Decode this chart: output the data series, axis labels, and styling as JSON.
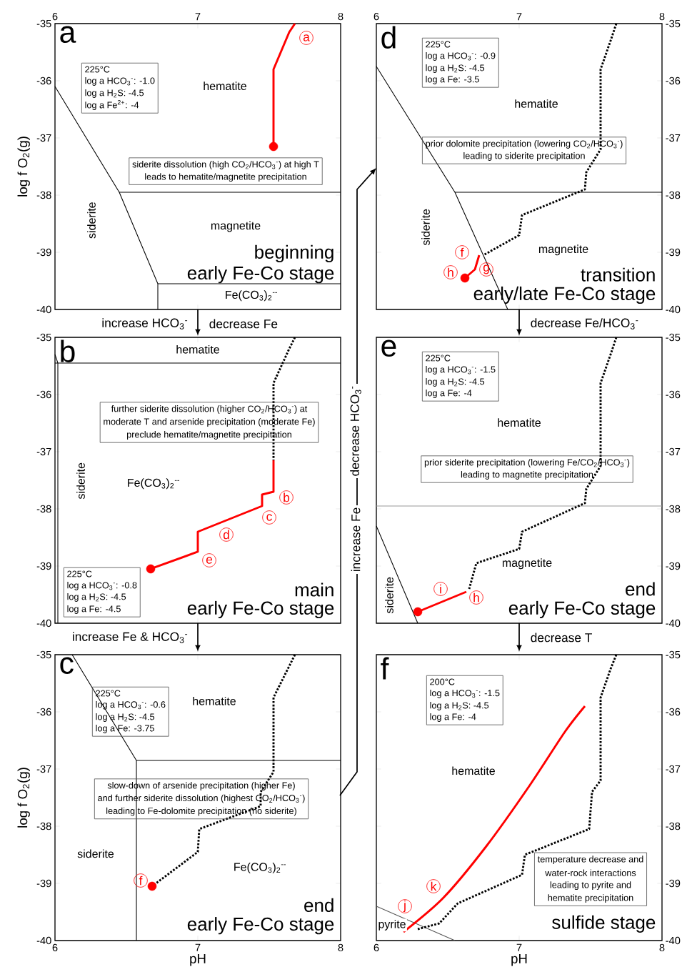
{
  "chart_data": [
    {
      "type": "line",
      "title": "a",
      "ylabel": "log f O$_{2}$(g)",
      "xlim": [
        6,
        8
      ],
      "ylim": [
        -40,
        -35
      ],
      "xticks": [
        6,
        7,
        8
      ],
      "yticks": [
        -40,
        -39,
        -38,
        -37,
        -36,
        -35
      ],
      "series": [
        {
          "type": "line",
          "color": "#000000",
          "x": [
            6,
            6.45,
            6.72,
            6.72
          ],
          "values": [
            -36.1,
            -37.95,
            -39.55,
            -40
          ]
        },
        {
          "type": "line",
          "color": "#000000",
          "x": [
            6.45,
            8
          ],
          "values": [
            -37.95,
            -37.95
          ]
        },
        {
          "type": "line",
          "color": "#000000",
          "x": [
            6.72,
            8
          ],
          "values": [
            -39.55,
            -39.55
          ]
        },
        {
          "type": "line",
          "color": "#ff0000",
          "x": [
            7.68,
            7.64,
            7.53,
            7.53
          ],
          "values": [
            -35,
            -35.15,
            -35.8,
            -37.15
          ]
        },
        {
          "type": "scatter",
          "color": "#ff0000",
          "marker": "circle",
          "x": [
            7.53
          ],
          "values": [
            -37.15
          ]
        },
        {
          "type": "scatter",
          "color": "#ff0000",
          "marker": "circle",
          "x": [
            7.76
          ],
          "values": [
            -35.25
          ],
          "value_labels": [
            "a"
          ]
        }
      ],
      "annotations": [
        "hematite",
        "magnetite",
        "siderite",
        "Fe(CO$_{3}$)$_{2}$$^{--}$",
        "225°C",
        "log a HCO$_{3}$$^{-}$: -1.0",
        "log a H$_{2}$S: -4.5",
        "log a Fe$^{2+}$: -4",
        "siderite dissolution (high CO$_{2}$/HCO$_{3}$$^{-}$) at high T",
        "leads to hematite/magnetite precipitation",
        "beginning",
        "early Fe-Co stage",
        "increase HCO$_{3}$$^{-}$",
        "decrease Fe"
      ]
    },
    {
      "type": "line",
      "title": "b",
      "xlim": [
        6,
        8
      ],
      "ylim": [
        -40,
        -35
      ],
      "xticks": [
        6,
        7,
        8
      ],
      "yticks": [
        -40,
        -39,
        -38,
        -37,
        -36,
        -35
      ],
      "tick_labels": "y",
      "series": [
        {
          "type": "line",
          "color": "#000000",
          "x": [
            6,
            8
          ],
          "values": [
            -35.45,
            -35.45
          ]
        },
        {
          "type": "line",
          "color": "#000000",
          "x": [
            6,
            6.02,
            6.02
          ],
          "values": [
            -35.3,
            -35.45,
            -40
          ]
        },
        {
          "type": "line",
          "color": "#000000",
          "line_style": "dotted",
          "x": [
            7.68,
            7.64,
            7.53,
            7.53
          ],
          "values": [
            -35,
            -35.2,
            -35.8,
            -37.15
          ]
        },
        {
          "type": "line",
          "color": "#ff0000",
          "x": [
            7.53,
            7.53,
            7.45,
            7.45,
            7.0,
            7.0,
            6.67
          ],
          "values": [
            -37.15,
            -37.7,
            -37.75,
            -37.95,
            -38.4,
            -38.75,
            -39.05
          ]
        },
        {
          "type": "scatter",
          "color": "#ff0000",
          "marker": "circle",
          "x": [
            6.67
          ],
          "values": [
            -39.05
          ]
        },
        {
          "type": "scatter",
          "color": "#ff0000",
          "marker": "circle",
          "x": [
            7.62,
            7.5,
            7.2,
            7.08
          ],
          "values": [
            -37.8,
            -38.15,
            -38.45,
            -38.9
          ],
          "value_labels": [
            "b",
            "c",
            "d",
            "e"
          ]
        }
      ],
      "annotations": [
        "hematite",
        "siderite",
        "Fe(CO$_{3}$)$_{2}$$^{--}$",
        "further siderite dissolution (higher CO$_{2}$/HCO$_{3}$$^{-}$) at",
        "moderate T and arsenide precipitation (moderate Fe)",
        "preclude hematite/magnetite precipitation",
        "225°C",
        "log a HCO$_{3}$$^{-}$: -0.8",
        "log a H$_{2}$S: -4.5",
        "log a Fe: -4.5",
        "main",
        "early Fe-Co stage",
        "increase Fe & HCO$_{3}$$^{-}$"
      ]
    },
    {
      "type": "line",
      "title": "c",
      "xlabel": "pH",
      "ylabel": "log f O$_{2}$(g)",
      "xlim": [
        6,
        8
      ],
      "ylim": [
        -40,
        -35
      ],
      "xticks": [
        6,
        7,
        8
      ],
      "yticks": [
        -40,
        -39,
        -38,
        -37,
        -36,
        -35
      ],
      "series": [
        {
          "type": "line",
          "color": "#000000",
          "x": [
            6.12,
            6.57,
            6.57
          ],
          "values": [
            -35,
            -36.85,
            -40
          ]
        },
        {
          "type": "line",
          "color": "#000000",
          "x": [
            6.57,
            8
          ],
          "values": [
            -36.85,
            -36.85
          ]
        },
        {
          "type": "line",
          "color": "#000000",
          "line_style": "dotted",
          "x": [
            7.68,
            7.64,
            7.53,
            7.53,
            7.44,
            7.44,
            7.01,
            7.0,
            6.68
          ],
          "values": [
            -35,
            -35.2,
            -35.75,
            -37.05,
            -37.4,
            -37.65,
            -38.05,
            -38.45,
            -39.05
          ]
        },
        {
          "type": "scatter",
          "color": "#ff0000",
          "marker": "circle",
          "x": [
            6.68
          ],
          "values": [
            -39.05
          ]
        },
        {
          "type": "scatter",
          "color": "#ff0000",
          "marker": "circle",
          "x": [
            6.6
          ],
          "values": [
            -38.95
          ],
          "value_labels": [
            "f"
          ]
        }
      ],
      "annotations": [
        "hematite",
        "siderite",
        "Fe(CO$_{3}$)$_{2}$$^{--}$",
        "225°C",
        "log a HCO$_{3}$$^{-}$: -0.6",
        "log a H$_{2}$S: -4.5",
        "log a Fe: -3.75",
        "slow-down of arsenide precipitation (higher Fe)",
        "and further siderite dissolution (highest CO$_{2}$/HCO$_{3}$$^{-}$)",
        "leading to Fe-dolomite precipitation (no siderite)",
        "end",
        "early Fe-Co stage",
        "increase Fe",
        "decrease HCO$_{3}$$^{-}$"
      ]
    },
    {
      "type": "line",
      "title": "d",
      "xlim": [
        6,
        8
      ],
      "ylim": [
        -40,
        -35
      ],
      "xticks": [
        6,
        7,
        8
      ],
      "yticks": [
        -40,
        -39,
        -38,
        -37,
        -36,
        -35
      ],
      "series": [
        {
          "type": "line",
          "color": "#000000",
          "x": [
            6,
            6.55,
            6.92
          ],
          "values": [
            -35.75,
            -37.95,
            -40
          ]
        },
        {
          "type": "line",
          "color": "#000000",
          "x": [
            6.55,
            8
          ],
          "values": [
            -37.95,
            -37.95
          ]
        },
        {
          "type": "line",
          "color": "#000000",
          "line_style": "dotted",
          "x": [
            7.68,
            7.64,
            7.57,
            7.57,
            7.47,
            7.46,
            7.02,
            7.0,
            6.75
          ],
          "values": [
            -35,
            -35.3,
            -35.8,
            -37.2,
            -37.6,
            -37.9,
            -38.35,
            -38.7,
            -39.05
          ]
        },
        {
          "type": "line",
          "color": "#ff0000",
          "x": [
            6.72,
            6.69,
            6.62
          ],
          "values": [
            -39.05,
            -39.3,
            -39.45
          ]
        },
        {
          "type": "scatter",
          "color": "#ff0000",
          "marker": "circle",
          "x": [
            6.62
          ],
          "values": [
            -39.45
          ]
        },
        {
          "type": "scatter",
          "color": "#ff0000",
          "marker": "circle",
          "x": [
            6.6,
            6.77,
            6.52
          ],
          "values": [
            -39.0,
            -39.3,
            -39.35
          ],
          "value_labels": [
            "f",
            "g",
            "h"
          ]
        }
      ],
      "annotations": [
        "hematite",
        "siderite",
        "magnetite",
        "225°C",
        "log a HCO$_{3}$$^{-}$: -0.9",
        "log a H$_{2}$S: -4.5",
        "log a Fe: -3.5",
        "prior dolomite precipitation (lowering CO$_{2}$/HCO$_{3}$$^{-}$)",
        "leading to siderite precipitation",
        "transition",
        "early/late Fe-Co stage",
        "decrease Fe/HCO$_{3}$$^{-}$"
      ]
    },
    {
      "type": "line",
      "title": "e",
      "xlim": [
        6,
        8
      ],
      "ylim": [
        -40,
        -35
      ],
      "xticks": [
        6,
        7,
        8
      ],
      "yticks": [
        -40,
        -39,
        -38,
        -37,
        -36,
        -35
      ],
      "tick_labels": "y",
      "series": [
        {
          "type": "line",
          "color": "#999999",
          "x": [
            6,
            8
          ],
          "values": [
            -37.95,
            -37.95
          ]
        },
        {
          "type": "line",
          "color": "#000000",
          "x": [
            6,
            6.29
          ],
          "values": [
            -38.3,
            -40
          ]
        },
        {
          "type": "line",
          "color": "#000000",
          "line_style": "dotted",
          "x": [
            7.68,
            7.64,
            7.57,
            7.57,
            7.47,
            7.46,
            7.02,
            7.0,
            6.7,
            6.65
          ],
          "values": [
            -35,
            -35.3,
            -35.8,
            -37.25,
            -37.65,
            -37.9,
            -38.4,
            -38.7,
            -38.95,
            -39.4
          ]
        },
        {
          "type": "line",
          "color": "#ff0000",
          "x": [
            6.63,
            6.29
          ],
          "values": [
            -39.45,
            -39.8
          ]
        },
        {
          "type": "scatter",
          "color": "#ff0000",
          "marker": "circle",
          "x": [
            6.29
          ],
          "values": [
            -39.8
          ]
        },
        {
          "type": "scatter",
          "color": "#ff0000",
          "marker": "circle",
          "x": [
            6.45,
            6.7
          ],
          "values": [
            -39.4,
            -39.55
          ],
          "value_labels": [
            "i",
            "h"
          ]
        }
      ],
      "annotations": [
        "hematite",
        "magnetite",
        "siderite",
        "225°C",
        "log a HCO$_{3}$$^{-}$: -1.5",
        "log a H$_{2}$S: -4.5",
        "log a Fe: -4",
        "prior siderite precipitation (lowering Fe/CO$_{2}$/HCO$_{3}$$^{-}$)",
        "leading to magnetite precipitation",
        "end",
        "early Fe-Co stage",
        "decrease T"
      ]
    },
    {
      "type": "line",
      "title": "f",
      "xlabel": "pH",
      "xlim": [
        6,
        8
      ],
      "ylim": [
        -40,
        -35
      ],
      "xticks": [
        6,
        7,
        8
      ],
      "yticks": [
        -40,
        -39,
        -38,
        -37,
        -36,
        -35
      ],
      "series": [
        {
          "type": "line",
          "color": "#555555",
          "x": [
            6,
            6.55
          ],
          "values": [
            -39.4,
            -40
          ]
        },
        {
          "type": "line",
          "color": "#000000",
          "line_style": "dotted",
          "x": [
            7.68,
            7.64,
            7.57,
            7.57,
            7.51,
            7.49,
            7.04,
            7.02,
            6.57,
            6.44,
            6.29
          ],
          "values": [
            -35,
            -35.25,
            -35.75,
            -37.2,
            -37.4,
            -38.05,
            -38.5,
            -38.85,
            -39.35,
            -39.7,
            -39.8
          ]
        },
        {
          "type": "line",
          "color": "#ff0000",
          "x": [
            6.19,
            6.47,
            6.77,
            7.07,
            7.32,
            7.46
          ],
          "values": [
            -39.85,
            -39.25,
            -38.35,
            -37.3,
            -36.35,
            -35.9
          ]
        },
        {
          "type": "scatter",
          "color": "#ff0000",
          "marker": "circle",
          "x": [
            6.2,
            6.4
          ],
          "values": [
            -39.4,
            -39.05
          ],
          "value_labels": [
            "j",
            "k"
          ]
        }
      ],
      "annotations": [
        "hematite",
        "pyrite",
        "200°C",
        "log a HCO$_{3}$$^{-}$: -1.5",
        "log a H$_{2}$S: -4.5",
        "log a Fe: -4",
        "temperature decrease and",
        "water-rock interactions",
        "leading to pyrite and",
        "hematite precipitation",
        "sulfide stage"
      ]
    }
  ]
}
